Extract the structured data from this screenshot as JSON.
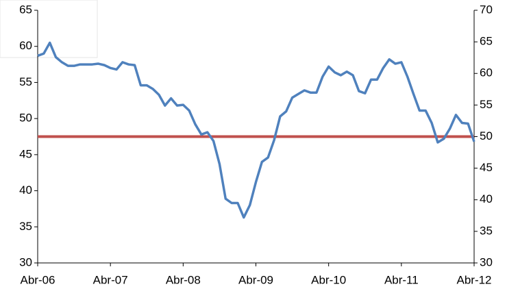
{
  "chart_data": {
    "type": "line",
    "categories": [
      "Abr-06",
      null,
      null,
      null,
      null,
      null,
      null,
      null,
      null,
      null,
      null,
      null,
      "Abr-07",
      null,
      null,
      null,
      null,
      null,
      null,
      null,
      null,
      null,
      null,
      null,
      "Abr-08",
      null,
      null,
      null,
      null,
      null,
      null,
      null,
      null,
      null,
      null,
      null,
      "Abr-09",
      null,
      null,
      null,
      null,
      null,
      null,
      null,
      null,
      null,
      null,
      null,
      "Abr-10",
      null,
      null,
      null,
      null,
      null,
      null,
      null,
      null,
      null,
      null,
      null,
      "Abr-11",
      null,
      null,
      null,
      null,
      null,
      null,
      null,
      null,
      null,
      null,
      null,
      "Abr-12"
    ],
    "series": [
      {
        "color": "#4f81bd",
        "values": [
          58.7,
          59.0,
          60.5,
          58.5,
          57.8,
          57.3,
          57.3,
          57.5,
          57.5,
          57.5,
          57.6,
          57.4,
          57.0,
          56.8,
          57.8,
          57.5,
          57.4,
          54.6,
          54.6,
          54.1,
          53.3,
          51.8,
          52.8,
          51.8,
          51.9,
          51.1,
          49.2,
          47.8,
          48.1,
          46.9,
          43.7,
          38.9,
          38.3,
          38.3,
          36.3,
          38.0,
          41.2,
          44.0,
          44.6,
          47.0,
          50.3,
          51.0,
          52.9,
          53.4,
          53.9,
          53.6,
          53.6,
          55.8,
          57.2,
          56.4,
          56.0,
          56.5,
          56.0,
          53.8,
          53.5,
          55.4,
          55.4,
          57.0,
          58.2,
          57.6,
          57.8,
          55.8,
          53.4,
          51.1,
          51.1,
          49.4,
          46.7,
          47.2,
          48.6,
          50.5,
          49.4,
          49.3,
          46.8
        ]
      }
    ],
    "reference_line": {
      "value": 50,
      "axis": "y2",
      "color": "#c0504d"
    },
    "ylim": [
      30,
      65
    ],
    "yticks": [
      30,
      35,
      40,
      45,
      50,
      55,
      60,
      65
    ],
    "y2lim": [
      30,
      70
    ],
    "y2ticks": [
      30,
      35,
      40,
      45,
      50,
      55,
      60,
      65,
      70
    ]
  }
}
